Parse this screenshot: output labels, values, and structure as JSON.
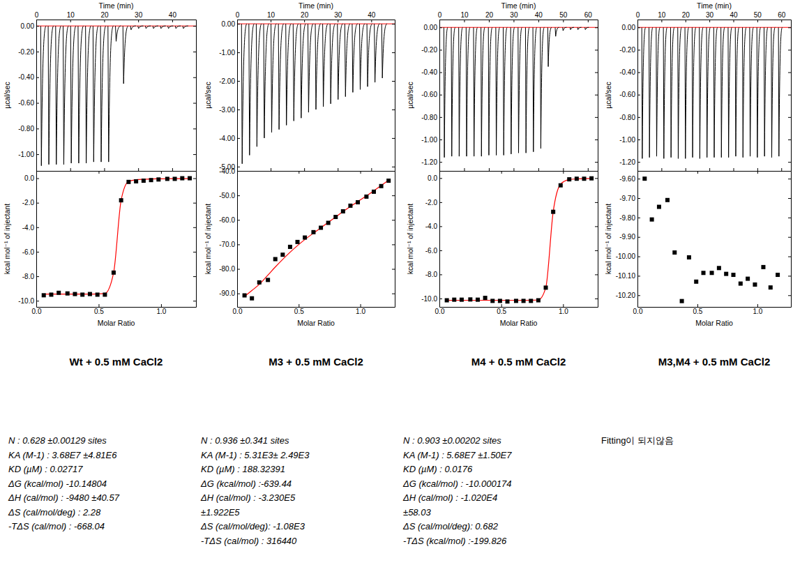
{
  "chart_data": [
    {
      "type": "thermogram",
      "xlabel": "Time (min)",
      "ylabel": "µcal/sec",
      "x": [
        1.5,
        3.7,
        5.9,
        8.1,
        10.3,
        12.5,
        14.7,
        16.9,
        19.1,
        21.3,
        23.5,
        25.7,
        27.9,
        30.1,
        32.3,
        34.5,
        36.7,
        38.9,
        41.1,
        43.3
      ],
      "values": [
        -1.09,
        -1.08,
        -1.08,
        -1.08,
        -1.07,
        -1.07,
        -1.07,
        -1.06,
        -1.06,
        -1.06,
        -0.12,
        -0.45,
        -0.03,
        -0.02,
        -0.02,
        -0.02,
        -0.02,
        -0.02,
        -0.02,
        -0.02
      ],
      "baseline": 0,
      "xlim": [
        0,
        47
      ],
      "xticks": [
        0,
        10,
        20,
        30,
        40
      ],
      "ylim": [
        -1.13,
        0.05
      ],
      "yticks": [
        {
          "value": 0,
          "label": "0.00"
        },
        {
          "value": -0.2,
          "label": "-0.20"
        },
        {
          "value": -0.4,
          "label": "-0.40"
        },
        {
          "value": -0.6,
          "label": "-0.60"
        },
        {
          "value": -0.8,
          "label": "-0.80"
        },
        {
          "value": -1,
          "label": "-1.00"
        }
      ],
      "color": "#000000"
    },
    {
      "type": "scatter",
      "xlabel": "Molar Ratio",
      "ylabel": "kcal mol⁻¹ of injectant",
      "x": [
        0.06,
        0.12,
        0.18,
        0.25,
        0.31,
        0.37,
        0.43,
        0.49,
        0.55,
        0.62,
        0.68,
        0.74,
        0.8,
        0.86,
        0.92,
        0.98,
        1.05,
        1.11,
        1.17,
        1.23
      ],
      "values": [
        -9.55,
        -9.5,
        -9.35,
        -9.4,
        -9.45,
        -9.5,
        -9.45,
        -9.5,
        -9.5,
        -7.7,
        -1.8,
        -0.3,
        -0.25,
        -0.2,
        -0.15,
        -0.1,
        -0.05,
        -0.05,
        0,
        0
      ],
      "fit": [
        -9.45,
        -9.45,
        -9.45,
        -9.45,
        -9.45,
        -9.45,
        -9.45,
        -9.44,
        -9.4,
        -7.7,
        -1.8,
        -0.25,
        -0.12,
        -0.08,
        -0.06,
        -0.05,
        -0.04,
        -0.03,
        -0.03,
        -0.02
      ],
      "xlim": [
        0,
        1.28
      ],
      "xticks": [
        {
          "value": 0,
          "label": "0.0"
        },
        0.5,
        {
          "value": 1,
          "label": "1.0"
        }
      ],
      "ylim": [
        -10.5,
        0.6
      ],
      "yticks": [
        {
          "value": 0,
          "label": "0.0"
        },
        {
          "value": -2,
          "label": "-2.0"
        },
        {
          "value": -4,
          "label": "-4.0"
        },
        {
          "value": -6,
          "label": "-6.0"
        },
        {
          "value": -8,
          "label": "-8.0"
        },
        {
          "value": -10,
          "label": "-10.0"
        }
      ],
      "color": "#000000",
      "marker": "square"
    },
    {
      "type": "thermogram",
      "xlabel": "Time (min)",
      "ylabel": "µcal/sec",
      "x": [
        1.5,
        3.7,
        5.9,
        8.1,
        10.3,
        12.5,
        14.7,
        16.9,
        19.1,
        21.3,
        23.5,
        25.7,
        27.9,
        30.1,
        32.3,
        34.5,
        36.7,
        38.9,
        41.1,
        43.3
      ],
      "values": [
        -4.9,
        -4.6,
        -4.3,
        -4.0,
        -3.8,
        -3.7,
        -3.55,
        -3.4,
        -3.3,
        -3.1,
        -3.0,
        -2.9,
        -2.8,
        -2.65,
        -2.55,
        -2.4,
        -2.3,
        -2.2,
        -2.05,
        -1.9
      ],
      "baseline": 0,
      "xlim": [
        0,
        47
      ],
      "xticks": [
        0,
        10,
        20,
        30,
        40
      ],
      "ylim": [
        -5.15,
        0.15
      ],
      "yticks": [
        {
          "value": 0,
          "label": "0.00"
        },
        {
          "value": -1,
          "label": "-1.00"
        },
        {
          "value": -2,
          "label": "-2.00"
        },
        {
          "value": -3,
          "label": "-3.00"
        },
        {
          "value": -4,
          "label": "-4.00"
        },
        {
          "value": -5,
          "label": "-5.00"
        }
      ],
      "color": "#000000"
    },
    {
      "type": "scatter",
      "xlabel": "Molar Ratio",
      "ylabel": "kcal mol⁻¹ of injectant",
      "x": [
        0.06,
        0.12,
        0.18,
        0.25,
        0.31,
        0.37,
        0.43,
        0.49,
        0.55,
        0.62,
        0.68,
        0.74,
        0.8,
        0.86,
        0.92,
        0.98,
        1.05,
        1.11,
        1.17,
        1.23
      ],
      "values": [
        -90.8,
        -92.0,
        -85.5,
        -84.5,
        -76.0,
        -74.2,
        -71.0,
        -69.0,
        -67.2,
        -65.0,
        -63.2,
        -61.2,
        -58.8,
        -56.5,
        -54.2,
        -52.8,
        -50.5,
        -48.5,
        -46.2,
        -44.0
      ],
      "fit": [
        -91.2,
        -88.8,
        -86.3,
        -82.5,
        -79.2,
        -76.1,
        -73.2,
        -70.5,
        -68.0,
        -65.4,
        -63.2,
        -61.0,
        -58.8,
        -56.6,
        -54.5,
        -52.5,
        -50.2,
        -48.1,
        -46.0,
        -43.8
      ],
      "xlim": [
        0,
        1.28
      ],
      "xticks": [
        {
          "value": 0,
          "label": "0.0"
        },
        0.5,
        {
          "value": 1,
          "label": "1.0"
        }
      ],
      "ylim": [
        -95.5,
        -40
      ],
      "yticks": [
        {
          "value": -40,
          "label": "-40.0"
        },
        {
          "value": -50,
          "label": "-50.0"
        },
        {
          "value": -60,
          "label": "-60.0"
        },
        {
          "value": -70,
          "label": "-70.0"
        },
        {
          "value": -80,
          "label": "-80.0"
        },
        {
          "value": -90,
          "label": "-90.0"
        }
      ],
      "color": "#000000",
      "marker": "square"
    },
    {
      "type": "thermogram",
      "xlabel": "Time (min)",
      "ylabel": "µcal/sec",
      "x": [
        2,
        5,
        8,
        11,
        14,
        17,
        20,
        23,
        26,
        29,
        32,
        35,
        38,
        41,
        44,
        47,
        50,
        53,
        56,
        59
      ],
      "values": [
        -1.16,
        -1.15,
        -1.15,
        -1.15,
        -1.15,
        -1.15,
        -1.14,
        -1.14,
        -1.14,
        -1.13,
        -1.12,
        -1.12,
        -1.11,
        -1.08,
        -0.35,
        -0.08,
        -0.03,
        -0.02,
        -0.02,
        -0.02
      ],
      "baseline": 0,
      "xlim": [
        0,
        64
      ],
      "xticks": [
        0,
        10,
        20,
        30,
        40,
        50,
        60
      ],
      "ylim": [
        -1.28,
        0.07
      ],
      "yticks": [
        {
          "value": 0,
          "label": "0.00"
        },
        {
          "value": -0.2,
          "label": "-0.20"
        },
        {
          "value": -0.4,
          "label": "-0.40"
        },
        {
          "value": -0.6,
          "label": "-0.60"
        },
        {
          "value": -0.8,
          "label": "-0.80"
        },
        {
          "value": -1,
          "label": "-1.00"
        },
        {
          "value": -1.2,
          "label": "-1.20"
        }
      ],
      "color": "#000000"
    },
    {
      "type": "scatter",
      "xlabel": "Molar Ratio",
      "ylabel": "kcal mol⁻¹ of injectant",
      "x": [
        0.06,
        0.12,
        0.18,
        0.25,
        0.31,
        0.37,
        0.43,
        0.49,
        0.55,
        0.62,
        0.68,
        0.74,
        0.8,
        0.86,
        0.92,
        0.98,
        1.05,
        1.11,
        1.17,
        1.23
      ],
      "values": [
        -10.15,
        -10.1,
        -10.1,
        -10.08,
        -10.1,
        -9.95,
        -10.2,
        -10.2,
        -10.25,
        -10.2,
        -10.2,
        -10.2,
        -10.15,
        -9.1,
        -2.8,
        -0.6,
        -0.1,
        -0.05,
        -0.05,
        -0.02
      ],
      "fit": [
        -10.15,
        -10.15,
        -10.15,
        -10.15,
        -10.15,
        -10.15,
        -10.15,
        -10.15,
        -10.15,
        -10.15,
        -10.15,
        -10.14,
        -10.12,
        -9.1,
        -2.8,
        -0.5,
        -0.12,
        -0.06,
        -0.04,
        -0.03
      ],
      "xlim": [
        0,
        1.28
      ],
      "xticks": [
        {
          "value": 0,
          "label": "0.0"
        },
        0.5,
        {
          "value": 1,
          "label": "1.0"
        }
      ],
      "ylim": [
        -10.7,
        0.6
      ],
      "yticks": [
        {
          "value": 0,
          "label": "0.0"
        },
        {
          "value": -2,
          "label": "-2.0"
        },
        {
          "value": -4,
          "label": "-4.0"
        },
        {
          "value": -6,
          "label": "-6.0"
        },
        {
          "value": -8,
          "label": "-8.0"
        },
        {
          "value": -10,
          "label": "-10.0"
        }
      ],
      "color": "#000000",
      "marker": "square"
    },
    {
      "type": "thermogram",
      "xlabel": "Time (min)",
      "ylabel": "µcal/sec",
      "x": [
        2,
        5,
        8,
        11,
        14,
        17,
        20,
        23,
        26,
        29,
        32,
        35,
        38,
        41,
        44,
        47,
        50,
        53,
        56,
        59
      ],
      "values": [
        -1.17,
        -1.16,
        -1.15,
        -1.17,
        -1.16,
        -1.17,
        -1.17,
        -1.16,
        -1.17,
        -1.16,
        -1.16,
        -1.16,
        -1.16,
        -1.15,
        -1.16,
        -1.15,
        -1.16,
        -1.15,
        -1.16,
        -1.15
      ],
      "baseline": 0,
      "xlim": [
        0,
        64
      ],
      "xticks": [
        0,
        10,
        20,
        30,
        40,
        50,
        60
      ],
      "ylim": [
        -1.28,
        0.07
      ],
      "yticks": [
        {
          "value": 0,
          "label": "0.00"
        },
        {
          "value": -0.2,
          "label": "-0.20"
        },
        {
          "value": -0.4,
          "label": "-0.40"
        },
        {
          "value": -0.6,
          "label": "-0.60"
        },
        {
          "value": -0.8,
          "label": "-0.80"
        },
        {
          "value": -1,
          "label": "-1.00"
        },
        {
          "value": -1.2,
          "label": "-1.20"
        }
      ],
      "color": "#000000"
    },
    {
      "type": "scatter",
      "xlabel": "Molar Ratio",
      "ylabel": "kcal mol⁻¹ of injectant",
      "x": [
        0.06,
        0.12,
        0.18,
        0.25,
        0.31,
        0.37,
        0.43,
        0.49,
        0.55,
        0.62,
        0.68,
        0.74,
        0.8,
        0.86,
        0.92,
        0.98,
        1.05,
        1.11,
        1.17
      ],
      "values": [
        -9.6,
        -9.81,
        -9.745,
        -9.71,
        -9.98,
        -10.23,
        -10.005,
        -10.13,
        -10.085,
        -10.085,
        -10.06,
        -10.09,
        -10.095,
        -10.14,
        -10.115,
        -10.145,
        -10.055,
        -10.16,
        -10.095
      ],
      "xlim": [
        0,
        1.28
      ],
      "xticks": [
        {
          "value": 0,
          "label": "0.0"
        },
        0.5,
        {
          "value": 1,
          "label": "1.0"
        }
      ],
      "ylim": [
        -10.26,
        -9.56
      ],
      "yticks": [
        {
          "value": -9.6,
          "label": "-9.60"
        },
        {
          "value": -9.7,
          "label": "-9.70"
        },
        {
          "value": -9.8,
          "label": "-9.80"
        },
        {
          "value": -9.9,
          "label": "-9.90"
        },
        {
          "value": -10,
          "label": "-10.00"
        },
        {
          "value": -10.1,
          "label": "-10.10"
        },
        {
          "value": -10.2,
          "label": "-10.20"
        }
      ],
      "color": "#000000",
      "marker": "square"
    }
  ],
  "panels": [
    {
      "caption": "Wt + 0.5 mM CaCl2",
      "results": [
        "N : 0.628 ±0.00129 sites",
        "KA (M-1) : 3.68E7 ±4.81E6",
        "KD (µM) : 0.02717",
        "ΔG (kcal/mol) -10.14804",
        "ΔH (cal/mol) : -9480 ±40.57",
        "ΔS (cal/mol/deg) : 2.28",
        "-TΔS (cal/mol) : -668.04"
      ]
    },
    {
      "caption": "M3 + 0.5 mM CaCl2",
      "results": [
        "N : 0.936 ±0.341 sites",
        "KA (M-1) : 5.31E3± 2.49E3",
        "KD (µM) : 188.32391",
        "ΔG (kcal/mol) :-639.44",
        "ΔH (cal/mol) : -3.230E5",
        "±1.922E5",
        "ΔS (cal/mol/deg): -1.08E3",
        "-TΔS (cal/mol) : 316440"
      ]
    },
    {
      "caption": "M4 + 0.5 mM CaCl2",
      "results": [
        "N : 0.903 ±0.00202 sites",
        "KA (M-1) : 5.68E7 ±1.50E7",
        "KD (µM) : 0.0176",
        "ΔG (kcal/mol) : -10.000174",
        "ΔH (cal/mol) : -1.020E4",
        "±58.03",
        "ΔS (cal/mol/deg): 0.682",
        "-TΔS (kcal/mol) :-199.826"
      ]
    },
    {
      "caption": "M3,M4 + 0.5 mM CaCl2",
      "results": [
        "Fitting이 되지않음"
      ]
    }
  ]
}
